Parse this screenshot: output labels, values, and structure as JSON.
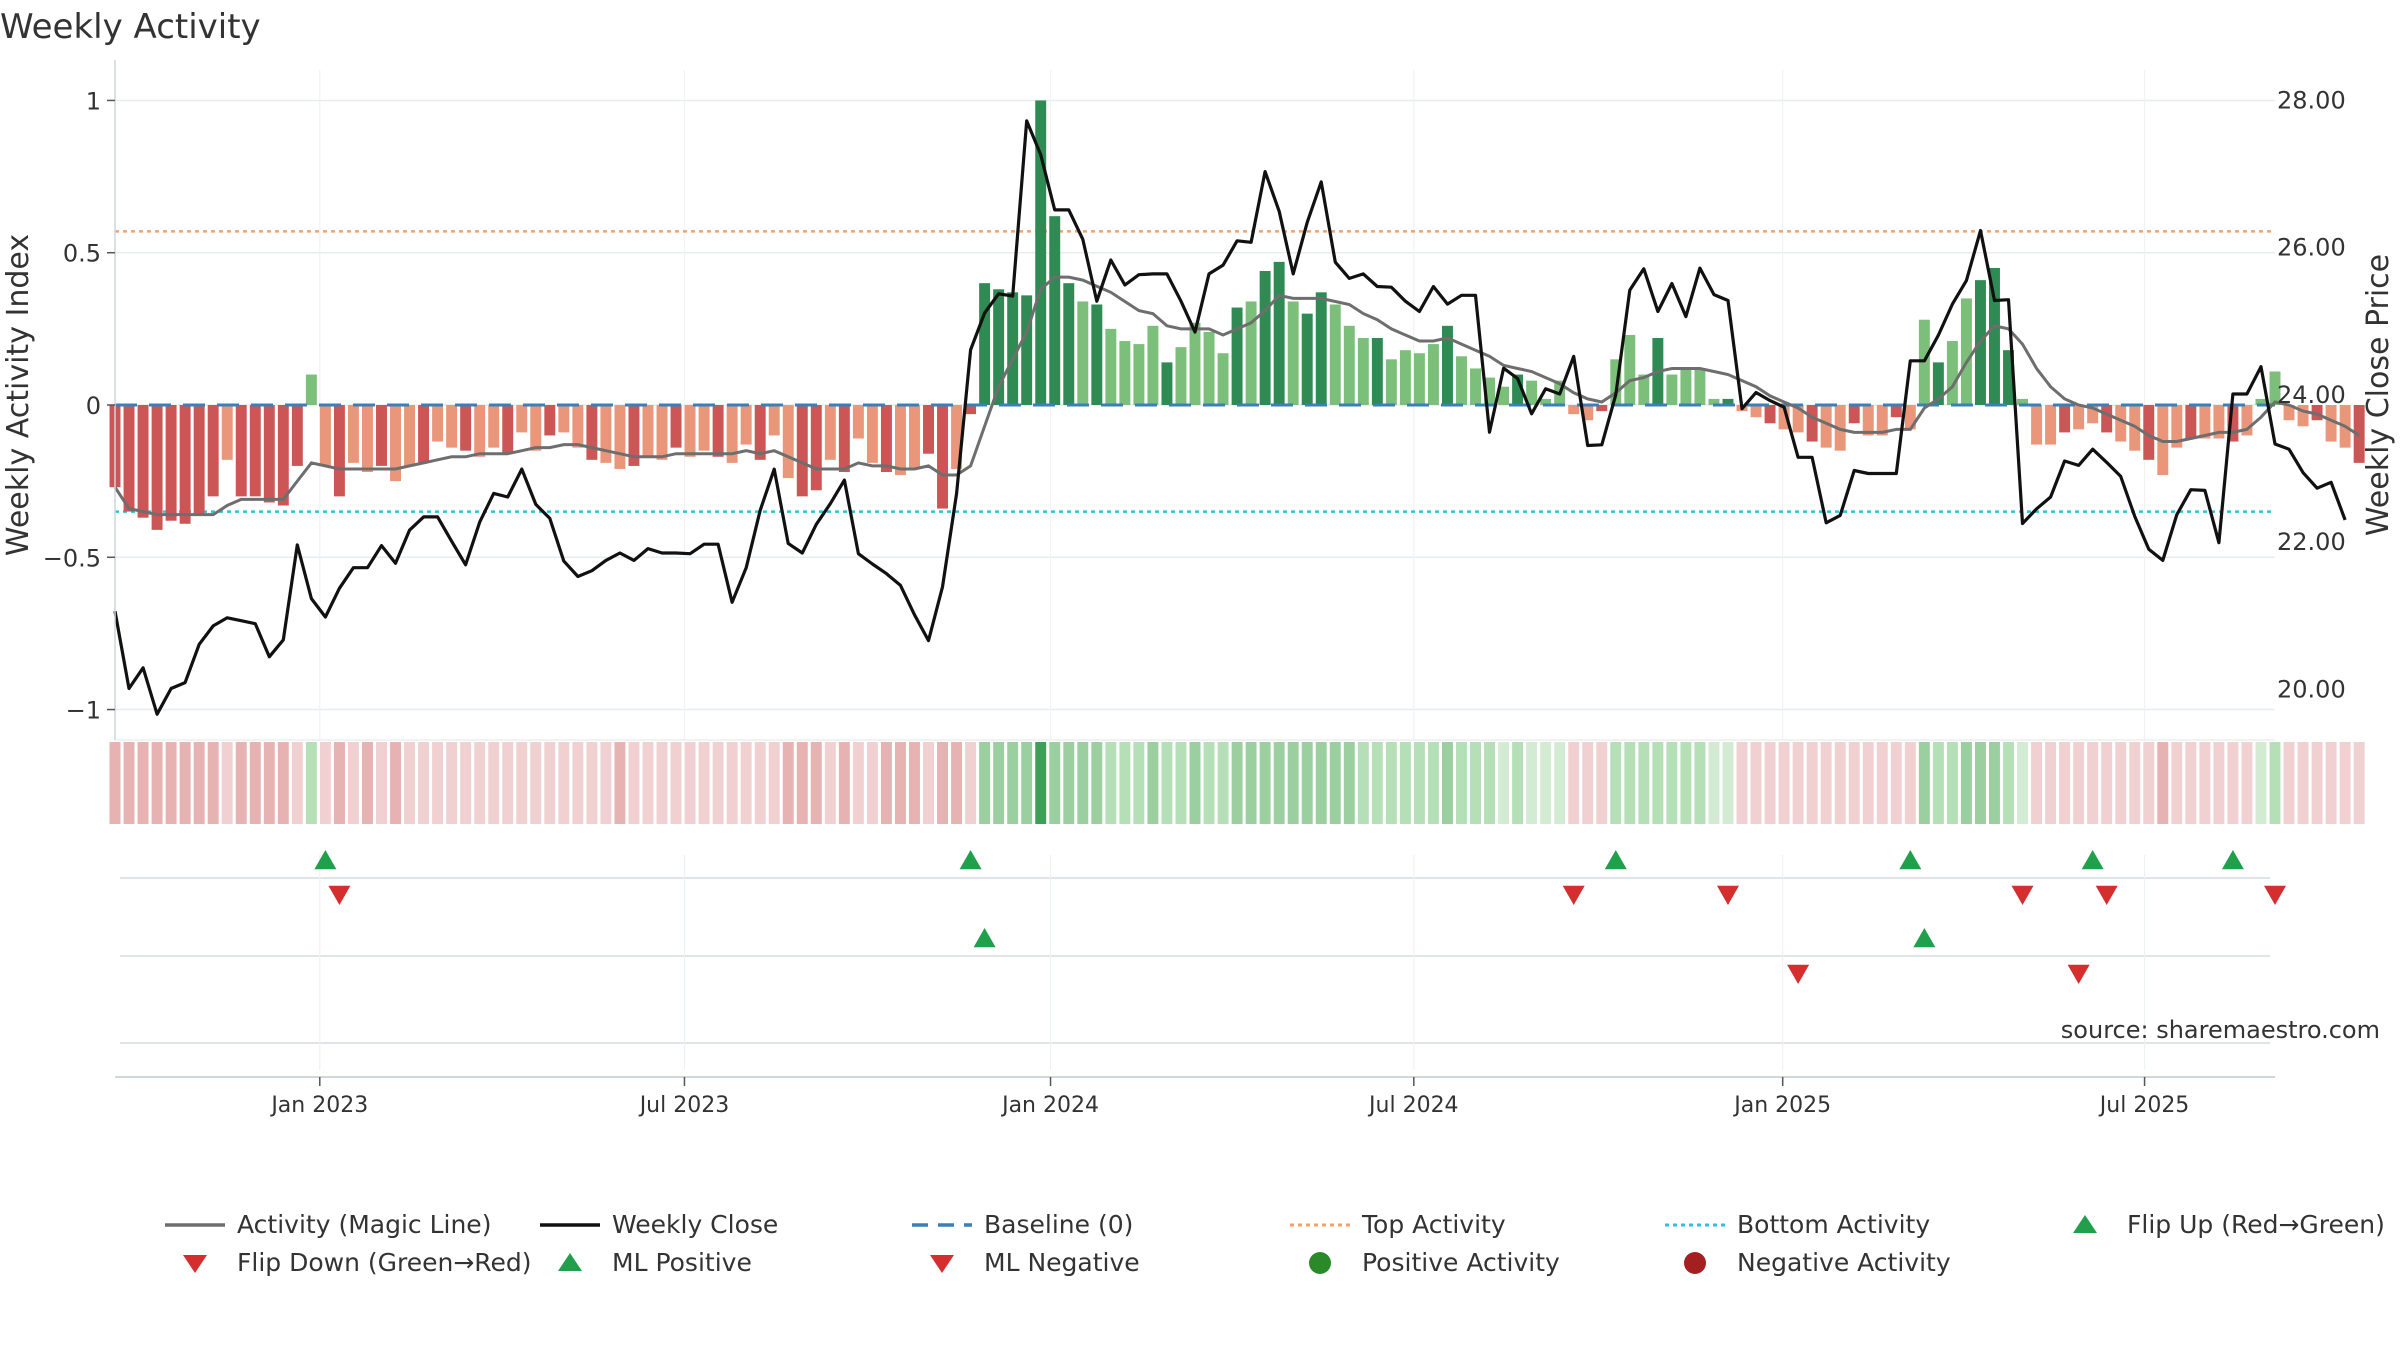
{
  "chart_data": {
    "type": "bar",
    "title": "Weekly Activity",
    "ylabel_left": "Weekly Activity Index",
    "ylabel_right": "Weekly Close Price",
    "ylim_left": [
      -1.1,
      1.1
    ],
    "ylim_right": [
      19.3,
      28.4
    ],
    "yticks_left": [
      {
        "value": 1,
        "label": "1"
      },
      {
        "value": 0.5,
        "label": "0.5"
      },
      {
        "value": 0,
        "label": "0"
      },
      {
        "value": -0.5,
        "label": "−0.5"
      },
      {
        "value": -1,
        "label": "−1"
      }
    ],
    "yticks_right": [
      {
        "value": 28,
        "label": "28.00"
      },
      {
        "value": 26,
        "label": "26.00"
      },
      {
        "value": 24,
        "label": "24.00"
      },
      {
        "value": 22,
        "label": "22.00"
      },
      {
        "value": 20,
        "label": "20.00"
      }
    ],
    "x_range_weeks": [
      0,
      154
    ],
    "xticks": [
      {
        "week": 14.6,
        "label": "Jan 2023"
      },
      {
        "week": 40.6,
        "label": "Jul 2023"
      },
      {
        "week": 66.7,
        "label": "Jan 2024"
      },
      {
        "week": 92.6,
        "label": "Jul 2024"
      },
      {
        "week": 118.9,
        "label": "Jan 2025"
      },
      {
        "week": 144.7,
        "label": "Jul 2025"
      }
    ],
    "thresholds": {
      "top": 0.57,
      "bottom": -0.35,
      "baseline": 0
    },
    "activity": [
      -0.27,
      -0.35,
      -0.37,
      -0.41,
      -0.38,
      -0.39,
      -0.36,
      -0.3,
      -0.18,
      -0.3,
      -0.3,
      -0.32,
      -0.33,
      -0.2,
      0.1,
      -0.2,
      -0.3,
      -0.19,
      -0.22,
      -0.2,
      -0.25,
      -0.2,
      -0.19,
      -0.12,
      -0.14,
      -0.15,
      -0.17,
      -0.14,
      -0.16,
      -0.09,
      -0.15,
      -0.1,
      -0.09,
      -0.14,
      -0.18,
      -0.19,
      -0.21,
      -0.2,
      -0.17,
      -0.18,
      -0.14,
      -0.17,
      -0.15,
      -0.17,
      -0.19,
      -0.13,
      -0.18,
      -0.1,
      -0.24,
      -0.3,
      -0.28,
      -0.18,
      -0.22,
      -0.11,
      -0.19,
      -0.22,
      -0.23,
      -0.21,
      -0.16,
      -0.34,
      -0.21,
      -0.03,
      0.4,
      0.38,
      0.37,
      0.36,
      1.0,
      0.62,
      0.4,
      0.34,
      0.33,
      0.25,
      0.21,
      0.2,
      0.26,
      0.14,
      0.19,
      0.27,
      0.24,
      0.17,
      0.32,
      0.34,
      0.44,
      0.47,
      0.34,
      0.3,
      0.37,
      0.33,
      0.26,
      0.22,
      0.22,
      0.15,
      0.18,
      0.17,
      0.2,
      0.26,
      0.16,
      0.12,
      0.09,
      0.06,
      0.1,
      0.08,
      0.02,
      0.08,
      -0.03,
      -0.05,
      -0.02,
      0.15,
      0.23,
      0.1,
      0.22,
      0.1,
      0.12,
      0.12,
      0.02,
      0.02,
      -0.02,
      -0.04,
      -0.06,
      -0.08,
      -0.09,
      -0.12,
      -0.14,
      -0.15,
      -0.06,
      -0.1,
      -0.1,
      -0.04,
      -0.08,
      0.28,
      0.14,
      0.21,
      0.35,
      0.41,
      0.45,
      0.18,
      0.02,
      -0.13,
      -0.13,
      -0.09,
      -0.08,
      -0.06,
      -0.09,
      -0.12,
      -0.15,
      -0.18,
      -0.23,
      -0.14,
      -0.11,
      -0.11,
      -0.11,
      -0.12,
      -0.1,
      0.02,
      0.11,
      -0.05,
      -0.07,
      -0.05,
      -0.12,
      -0.14,
      -0.19
    ],
    "magic_line": [
      -0.27,
      -0.34,
      -0.35,
      -0.36,
      -0.36,
      -0.36,
      -0.36,
      -0.36,
      -0.33,
      -0.31,
      -0.31,
      -0.31,
      -0.31,
      -0.25,
      -0.19,
      -0.2,
      -0.21,
      -0.21,
      -0.21,
      -0.21,
      -0.21,
      -0.2,
      -0.19,
      -0.18,
      -0.17,
      -0.17,
      -0.16,
      -0.16,
      -0.16,
      -0.15,
      -0.14,
      -0.14,
      -0.13,
      -0.13,
      -0.14,
      -0.15,
      -0.16,
      -0.17,
      -0.17,
      -0.17,
      -0.16,
      -0.16,
      -0.16,
      -0.16,
      -0.16,
      -0.15,
      -0.16,
      -0.15,
      -0.17,
      -0.19,
      -0.21,
      -0.21,
      -0.21,
      -0.19,
      -0.2,
      -0.2,
      -0.21,
      -0.21,
      -0.2,
      -0.23,
      -0.23,
      -0.2,
      -0.07,
      0.06,
      0.15,
      0.24,
      0.38,
      0.42,
      0.42,
      0.41,
      0.39,
      0.37,
      0.34,
      0.31,
      0.3,
      0.26,
      0.25,
      0.25,
      0.25,
      0.23,
      0.25,
      0.27,
      0.31,
      0.36,
      0.35,
      0.35,
      0.35,
      0.34,
      0.33,
      0.3,
      0.28,
      0.25,
      0.23,
      0.21,
      0.21,
      0.22,
      0.2,
      0.18,
      0.16,
      0.13,
      0.12,
      0.11,
      0.09,
      0.07,
      0.04,
      0.02,
      0.01,
      0.04,
      0.08,
      0.09,
      0.11,
      0.12,
      0.12,
      0.12,
      0.11,
      0.1,
      0.08,
      0.06,
      0.03,
      0.01,
      -0.01,
      -0.04,
      -0.06,
      -0.08,
      -0.09,
      -0.09,
      -0.09,
      -0.08,
      -0.08,
      -0.01,
      0.02,
      0.06,
      0.14,
      0.21,
      0.26,
      0.25,
      0.2,
      0.12,
      0.06,
      0.02,
      0.0,
      -0.01,
      -0.03,
      -0.05,
      -0.07,
      -0.1,
      -0.12,
      -0.12,
      -0.11,
      -0.1,
      -0.09,
      -0.09,
      -0.08,
      -0.04,
      0.01,
      0.0,
      -0.02,
      -0.03,
      -0.05,
      -0.07,
      -0.1
    ],
    "weekly_close": [
      21.05,
      20.0,
      20.28,
      19.65,
      20.0,
      20.08,
      20.6,
      20.85,
      20.96,
      20.92,
      20.88,
      20.43,
      20.66,
      21.95,
      21.22,
      20.97,
      21.36,
      21.64,
      21.64,
      21.94,
      21.7,
      22.15,
      22.33,
      22.33,
      22.0,
      21.68,
      22.26,
      22.65,
      22.6,
      22.98,
      22.5,
      22.31,
      21.73,
      21.52,
      21.6,
      21.74,
      21.84,
      21.74,
      21.9,
      21.84,
      21.84,
      21.83,
      21.96,
      21.96,
      21.17,
      21.64,
      22.42,
      22.98,
      21.97,
      21.84,
      22.23,
      22.51,
      22.83,
      21.83,
      21.69,
      21.56,
      21.4,
      21.0,
      20.65,
      21.38,
      22.65,
      24.6,
      25.1,
      25.36,
      25.33,
      27.71,
      27.25,
      26.5,
      26.5,
      26.1,
      25.26,
      25.82,
      25.48,
      25.62,
      25.63,
      25.63,
      25.26,
      24.84,
      25.63,
      25.75,
      26.08,
      26.06,
      27.02,
      26.48,
      25.63,
      26.33,
      26.88,
      25.79,
      25.57,
      25.63,
      25.46,
      25.45,
      25.26,
      25.12,
      25.46,
      25.22,
      25.34,
      25.34,
      23.48,
      24.35,
      24.21,
      23.73,
      24.07,
      24.0,
      24.51,
      23.3,
      23.31,
      23.99,
      25.41,
      25.7,
      25.12,
      25.5,
      25.05,
      25.71,
      25.35,
      25.27,
      23.8,
      24.02,
      23.91,
      23.82,
      23.14,
      23.14,
      22.25,
      22.35,
      22.96,
      22.92,
      22.92,
      22.92,
      24.45,
      24.45,
      24.8,
      25.22,
      25.54,
      26.22,
      25.27,
      25.28,
      22.24,
      22.44,
      22.6,
      23.09,
      23.03,
      23.25,
      23.07,
      22.88,
      22.34,
      21.89,
      21.74,
      22.36,
      22.7,
      22.69,
      21.98,
      24.0,
      24.0,
      24.37,
      23.32,
      23.25,
      22.93,
      22.72,
      22.8,
      22.29
    ],
    "ribbon": {
      "positive_colors": [
        "#d2ebd2",
        "#b5dfb7",
        "#9ccf9f",
        "#3f9e58"
      ],
      "negative_colors": [
        "#f0d0d0",
        "#e6b2b2"
      ]
    },
    "events": {
      "flip_up_row1": [
        15,
        61,
        107,
        128,
        141,
        151
      ],
      "flip_down_row1": [
        16,
        104,
        115,
        136,
        142,
        154
      ],
      "ml_positive_row2": [
        62,
        129
      ],
      "ml_negative_row2": [
        120,
        140
      ]
    },
    "source_text": "source: sharemaestro.com",
    "legend": [
      {
        "label": "Activity (Magic Line)",
        "kind": "line",
        "color": "#6e6e6e"
      },
      {
        "label": "Weekly Close",
        "kind": "line",
        "color": "#111111"
      },
      {
        "label": "Baseline (0)",
        "kind": "dashed",
        "color": "#3a7fb7"
      },
      {
        "label": "Top Activity",
        "kind": "dotted",
        "color": "#f0a36a"
      },
      {
        "label": "Bottom Activity",
        "kind": "dotted",
        "color": "#2cc4d8"
      },
      {
        "label": "Flip Up (Red→Green)",
        "kind": "triangle-up",
        "color": "#21a04c"
      },
      {
        "label": "Flip Down (Green→Red)",
        "kind": "triangle-down",
        "color": "#d42e2e"
      },
      {
        "label": "ML Positive",
        "kind": "triangle-up",
        "color": "#21a04c"
      },
      {
        "label": "ML Negative",
        "kind": "triangle-down",
        "color": "#d42e2e"
      },
      {
        "label": "Positive Activity",
        "kind": "circle",
        "color": "#2a8a2a"
      },
      {
        "label": "Negative Activity",
        "kind": "circle",
        "color": "#a41f1f"
      }
    ],
    "colors": {
      "pos_strong": "#2f8a53",
      "pos_light": "#7cbf7b",
      "neg_strong": "#cc5555",
      "neg_light": "#e9967a",
      "magic_line": "#6e6e6e",
      "close": "#111111",
      "baseline": "#3a7fb7",
      "top": "#f0a36a",
      "bottom": "#2cc4d8",
      "grid": "#e8ecef",
      "up": "#21a04c",
      "down": "#d42e2e"
    }
  }
}
